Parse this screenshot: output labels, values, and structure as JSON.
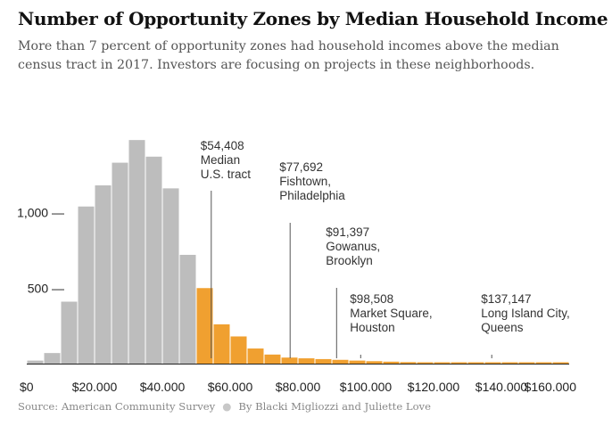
{
  "title": "Number of Opportunity Zones by Median Household Income",
  "subtitle": "More than 7 percent of opportunity zones had household incomes above the median census tract in 2017. Investors are focusing on projects in these neighborhoods.",
  "footer": {
    "source": "Source: American Community Survey",
    "byline": "By Blacki Migliozzi and Juliette Love"
  },
  "colors": {
    "below_median": "#bdbdbd",
    "above_median": "#f0a030",
    "annotation_line": "#555555",
    "axis": "#222222"
  },
  "chart_data": {
    "type": "bar",
    "title": "Number of Opportunity Zones by Median Household Income",
    "xlabel": "",
    "ylabel": "",
    "bin_width": 5000,
    "xlim": [
      0,
      160000
    ],
    "ylim": [
      0,
      1100
    ],
    "median": 54408,
    "bins_start": [
      0,
      5000,
      10000,
      15000,
      20000,
      25000,
      30000,
      35000,
      40000,
      45000,
      50000,
      55000,
      60000,
      65000,
      70000,
      75000,
      80000,
      85000,
      90000,
      95000,
      100000,
      105000,
      110000,
      115000,
      120000,
      125000,
      130000,
      135000,
      140000,
      145000,
      150000,
      155000
    ],
    "values": [
      20,
      70,
      410,
      1040,
      1180,
      1330,
      1480,
      1370,
      1160,
      720,
      500,
      260,
      180,
      100,
      60,
      40,
      35,
      30,
      25,
      20,
      16,
      13,
      10,
      8,
      6,
      5,
      4,
      4,
      3,
      3,
      2,
      2
    ],
    "x_ticks": [
      {
        "value": 0,
        "label": "$0"
      },
      {
        "value": 20000,
        "label": "$20.000"
      },
      {
        "value": 40000,
        "label": "$40.000"
      },
      {
        "value": 60000,
        "label": "$60.000"
      },
      {
        "value": 80000,
        "label": "$80.000"
      },
      {
        "value": 100000,
        "label": "$100.000"
      },
      {
        "value": 120000,
        "label": "$120.000"
      },
      {
        "value": 140000,
        "label": "$140.000"
      },
      {
        "value": 160000,
        "label": "$160.000"
      }
    ],
    "y_ticks": [
      {
        "value": 500,
        "label": "500 —"
      },
      {
        "value": 1000,
        "label": "1,000 —"
      }
    ],
    "annotations": [
      {
        "x": 54408,
        "lines": [
          "$54,408",
          "Median",
          "U.S. tract"
        ]
      },
      {
        "x": 77692,
        "lines": [
          "$77,692",
          "Fishtown,",
          "Philadelphia"
        ]
      },
      {
        "x": 91397,
        "lines": [
          "$91,397",
          "Gowanus,",
          "Brooklyn"
        ]
      },
      {
        "x": 98508,
        "lines": [
          "$98,508",
          "Market Square,",
          "Houston"
        ]
      },
      {
        "x": 137147,
        "lines": [
          "$137,147",
          "Long Island City,",
          "Queens"
        ]
      }
    ]
  }
}
